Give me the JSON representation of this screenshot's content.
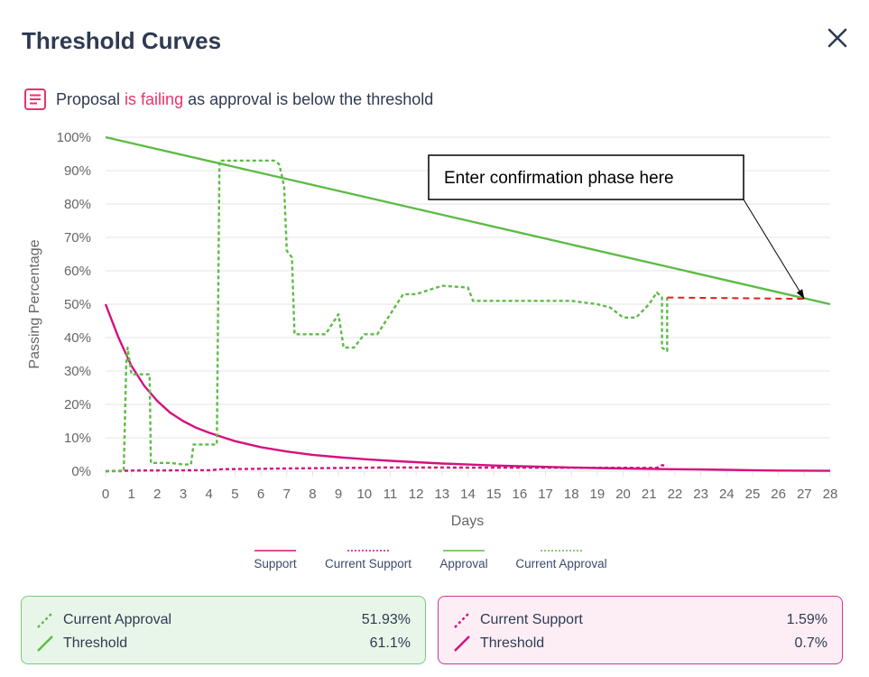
{
  "header": {
    "title": "Threshold Curves",
    "close_icon": "close-icon"
  },
  "status": {
    "icon": "document-icon",
    "prefix": "Proposal ",
    "state": "is failing",
    "suffix": " as approval is below the threshold"
  },
  "chart_data": {
    "type": "line",
    "xlabel": "Days",
    "ylabel": "Passing Percentage",
    "xlim": [
      0,
      28
    ],
    "ylim": [
      0,
      100
    ],
    "x_ticks": [
      0,
      1,
      2,
      3,
      4,
      5,
      6,
      7,
      8,
      9,
      10,
      11,
      12,
      13,
      14,
      15,
      16,
      17,
      18,
      19,
      20,
      21,
      22,
      23,
      24,
      25,
      26,
      27,
      28
    ],
    "y_ticks": [
      0,
      10,
      20,
      30,
      40,
      50,
      60,
      70,
      80,
      90,
      100
    ],
    "y_tick_labels": [
      "0%",
      "10%",
      "20%",
      "30%",
      "40%",
      "50%",
      "60%",
      "70%",
      "80%",
      "90%",
      "100%"
    ],
    "grid": "horizontal",
    "legend_position": "bottom",
    "legend": [
      "Support",
      "Current Support",
      "Approval",
      "Current Approval"
    ],
    "colors": {
      "support": "#d4117e",
      "approval": "#5dbb46",
      "projection": "#e02020"
    },
    "series": [
      {
        "name": "Support",
        "style": "solid",
        "color": "#d4117e",
        "x": [
          0,
          0.5,
          1,
          1.5,
          2,
          2.5,
          3,
          3.5,
          4,
          5,
          6,
          7,
          8,
          9,
          10,
          11,
          12,
          13,
          14,
          15,
          16,
          17,
          18,
          19,
          20,
          21,
          22,
          23,
          24,
          25,
          26,
          27,
          28
        ],
        "y": [
          50,
          40,
          31.5,
          25.5,
          21,
          17.5,
          15,
          13,
          11.5,
          9,
          7.2,
          5.9,
          4.9,
          4.2,
          3.6,
          3.1,
          2.7,
          2.3,
          2,
          1.7,
          1.5,
          1.3,
          1.1,
          0.95,
          0.8,
          0.7,
          0.6,
          0.5,
          0.4,
          0.3,
          0.2,
          0.15,
          0.1
        ]
      },
      {
        "name": "Current Support",
        "style": "dotted",
        "color": "#d4117e",
        "x": [
          0,
          1,
          4,
          4.5,
          7,
          11,
          21.3,
          21.5,
          21.7
        ],
        "y": [
          0,
          0.2,
          0.3,
          0.6,
          0.8,
          1.1,
          1,
          1.8,
          1.59
        ]
      },
      {
        "name": "Approval",
        "style": "solid",
        "color": "#5dbb46",
        "x": [
          0,
          28
        ],
        "y": [
          100,
          50
        ]
      },
      {
        "name": "Current Approval",
        "style": "dotted",
        "color": "#5dbb46",
        "x": [
          0,
          0.7,
          0.8,
          0.85,
          1,
          1.7,
          1.75,
          2.5,
          3,
          3.3,
          3.4,
          4.3,
          4.4,
          6.5,
          6.7,
          6.8,
          6.9,
          7,
          7.2,
          7.3,
          7.5,
          8,
          8.5,
          9,
          9.2,
          9.3,
          9.6,
          10,
          10.5,
          11,
          11.5,
          12,
          13,
          14,
          14.2,
          15,
          16,
          17,
          18,
          19,
          19.5,
          20,
          20.5,
          21,
          21.3,
          21.5,
          21.5,
          21.7,
          21.7
        ],
        "y": [
          0,
          0,
          32,
          37,
          29,
          29,
          2.5,
          2.5,
          2,
          2,
          8,
          8,
          93,
          93,
          92,
          89,
          85,
          66,
          64,
          41,
          41,
          41,
          41,
          47,
          37,
          37,
          37,
          41,
          41,
          47,
          53,
          53,
          55.5,
          55,
          51,
          51,
          51,
          51,
          51,
          50,
          49,
          46,
          46,
          50,
          53.5,
          52,
          37,
          36,
          52
        ]
      }
    ],
    "projection": {
      "x": [
        21.7,
        27
      ],
      "y": [
        52,
        51.6
      ],
      "style": "dashed",
      "color": "#e02020"
    },
    "annotation": {
      "text": "Enter confirmation phase here",
      "points_to": {
        "x": 27,
        "y": 51.6
      }
    }
  },
  "cards": {
    "approval": {
      "current_label": "Current Approval",
      "current_value": "51.93%",
      "current_icon": "dotted-line-icon",
      "threshold_label": "Threshold",
      "threshold_value": "61.1%",
      "threshold_icon": "solid-line-icon"
    },
    "support": {
      "current_label": "Current Support",
      "current_value": "1.59%",
      "current_icon": "dotted-line-icon",
      "threshold_label": "Threshold",
      "threshold_value": "0.7%",
      "threshold_icon": "solid-line-icon"
    }
  }
}
